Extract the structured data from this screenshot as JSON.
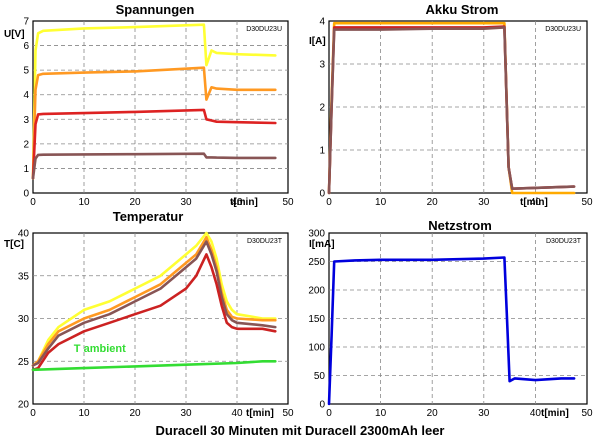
{
  "caption": "Duracell 30 Minuten mit Duracell 2300mAh leer",
  "chart_data": [
    {
      "id": "spannungen",
      "type": "line",
      "title": "Spannungen",
      "code": "D30DU23U",
      "ylabel": "U[V]",
      "xlabel": "t[min]",
      "xlim": [
        0,
        50
      ],
      "ylim": [
        0,
        7
      ],
      "xticks": [
        0,
        10,
        20,
        30,
        40,
        50
      ],
      "yticks": [
        0,
        1,
        2,
        3,
        4,
        5,
        6,
        7
      ],
      "grid": true,
      "series": [
        {
          "color": "#ffff33",
          "x": [
            0,
            0.5,
            1,
            2,
            10,
            20,
            33.5,
            34,
            35,
            36,
            40,
            47.5
          ],
          "y": [
            0.6,
            5.8,
            6.5,
            6.6,
            6.7,
            6.75,
            6.85,
            5.2,
            5.8,
            5.7,
            5.65,
            5.6
          ]
        },
        {
          "color": "#ff9922",
          "x": [
            0,
            0.5,
            1,
            2,
            10,
            20,
            33.5,
            34,
            35,
            36,
            40,
            47.5
          ],
          "y": [
            0.6,
            4.2,
            4.8,
            4.85,
            4.9,
            4.95,
            5.1,
            3.8,
            4.3,
            4.25,
            4.2,
            4.2
          ]
        },
        {
          "color": "#dd2222",
          "x": [
            0,
            0.5,
            1,
            2,
            10,
            20,
            33.5,
            34,
            35,
            36,
            40,
            47.5
          ],
          "y": [
            0.6,
            2.8,
            3.2,
            3.22,
            3.25,
            3.3,
            3.38,
            3.0,
            2.95,
            2.9,
            2.88,
            2.85
          ]
        },
        {
          "color": "#885555",
          "x": [
            0,
            0.5,
            1,
            2,
            10,
            20,
            33.5,
            34,
            35,
            36,
            40,
            47.5
          ],
          "y": [
            0.6,
            1.4,
            1.55,
            1.56,
            1.57,
            1.58,
            1.6,
            1.45,
            1.45,
            1.44,
            1.43,
            1.43
          ]
        }
      ]
    },
    {
      "id": "akku-strom",
      "type": "line",
      "title": "Akku Strom",
      "code": "D30DU23U",
      "ylabel": "I[A]",
      "xlabel": "t[min]",
      "xlim": [
        0,
        50
      ],
      "ylim": [
        0,
        4
      ],
      "xticks": [
        0,
        10,
        20,
        30,
        40,
        50
      ],
      "yticks": [
        0,
        1,
        2,
        3,
        4
      ],
      "grid": true,
      "series": [
        {
          "color": "#ffaa00",
          "x": [
            0,
            0.5,
            1,
            10,
            20,
            30,
            34,
            34.8,
            35.5,
            47.5
          ],
          "y": [
            0,
            2.2,
            3.95,
            3.95,
            3.95,
            3.95,
            3.95,
            0.6,
            0,
            0
          ]
        },
        {
          "color": "#cc2222",
          "x": [
            0,
            0.5,
            1,
            10,
            20,
            30,
            34,
            34.8,
            35.5,
            47.5
          ],
          "y": [
            0,
            2.0,
            3.85,
            3.85,
            3.85,
            3.85,
            3.87,
            0.6,
            0.1,
            0.15
          ]
        },
        {
          "color": "#885555",
          "x": [
            0,
            0.5,
            1,
            10,
            20,
            30,
            34,
            34.8,
            35.5,
            47.5
          ],
          "y": [
            0,
            2.0,
            3.8,
            3.8,
            3.82,
            3.82,
            3.85,
            0.6,
            0.1,
            0.15
          ]
        }
      ]
    },
    {
      "id": "temperatur",
      "type": "line",
      "title": "Temperatur",
      "code": "D30DU23T",
      "ylabel": "T[C]",
      "xlabel": "t[min]",
      "xlim": [
        0,
        50
      ],
      "ylim": [
        20,
        40
      ],
      "xticks": [
        0,
        10,
        20,
        30,
        40,
        50
      ],
      "yticks": [
        20,
        25,
        30,
        35,
        40
      ],
      "grid": true,
      "annotation": "T ambient",
      "series": [
        {
          "color": "#ffff33",
          "x": [
            0,
            1,
            3,
            5,
            10,
            15,
            20,
            25,
            30,
            32,
            34,
            35,
            36,
            37,
            38,
            39,
            40,
            45,
            47.5
          ],
          "y": [
            24.5,
            25,
            27.5,
            29,
            31,
            32,
            33.5,
            35,
            37.5,
            38.5,
            40,
            39,
            37,
            34,
            32,
            31,
            30.5,
            30,
            30
          ]
        },
        {
          "color": "#ff9922",
          "x": [
            0,
            1,
            3,
            5,
            10,
            15,
            20,
            25,
            30,
            32,
            34,
            35,
            36,
            37,
            38,
            39,
            40,
            45,
            47.5
          ],
          "y": [
            24.5,
            25,
            27,
            28.5,
            30,
            31,
            32.5,
            34,
            36.5,
            37.5,
            39.5,
            38,
            36,
            33,
            31,
            30.2,
            30,
            29.8,
            29.8
          ]
        },
        {
          "color": "#885555",
          "x": [
            0,
            1,
            3,
            5,
            10,
            15,
            20,
            25,
            30,
            32,
            34,
            35,
            36,
            37,
            38,
            39,
            40,
            45,
            47.5
          ],
          "y": [
            24.5,
            24.8,
            26.5,
            28,
            29.5,
            30.5,
            32,
            33.5,
            36,
            37,
            39,
            37.5,
            35.5,
            32.5,
            30.5,
            29.8,
            29.5,
            29.2,
            29
          ]
        },
        {
          "color": "#cc2222",
          "x": [
            0,
            1,
            3,
            5,
            10,
            15,
            20,
            25,
            30,
            32,
            34,
            35,
            36,
            37,
            38,
            39,
            40,
            45,
            47.5
          ],
          "y": [
            24,
            24.2,
            26,
            27,
            28.5,
            29.5,
            30.5,
            31.5,
            33.5,
            35,
            37.5,
            36,
            34,
            31.5,
            29.5,
            29,
            28.8,
            28.8,
            28.5
          ]
        },
        {
          "color": "#33dd33",
          "x": [
            0,
            10,
            20,
            30,
            40,
            45,
            47.5
          ],
          "y": [
            24,
            24.2,
            24.4,
            24.6,
            24.8,
            25,
            25
          ]
        }
      ]
    },
    {
      "id": "netzstrom",
      "type": "line",
      "title": "Netzstrom",
      "code": "D30DU23T",
      "ylabel": "I[mA]",
      "xlabel": "t[min]",
      "xlim": [
        0,
        50
      ],
      "ylim": [
        0,
        300
      ],
      "xticks": [
        0,
        10,
        20,
        30,
        40,
        50
      ],
      "yticks": [
        0,
        50,
        100,
        150,
        200,
        250,
        300
      ],
      "grid": true,
      "series": [
        {
          "color": "#0000dd",
          "x": [
            0,
            0.5,
            1,
            5,
            10,
            20,
            30,
            34,
            34.5,
            35,
            36,
            40,
            45,
            47.5
          ],
          "y": [
            0,
            120,
            250,
            252,
            253,
            253,
            255,
            257,
            150,
            40,
            45,
            42,
            45,
            45
          ]
        }
      ]
    }
  ]
}
